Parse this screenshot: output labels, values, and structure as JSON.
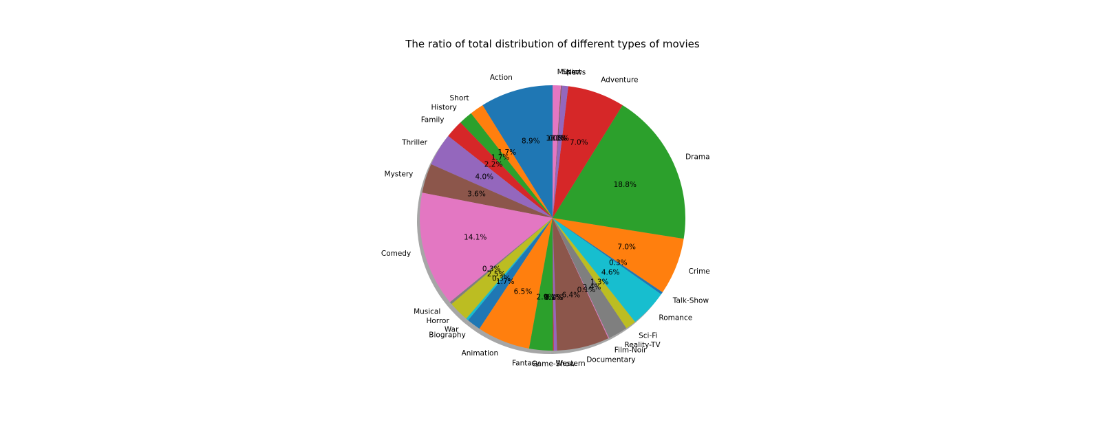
{
  "chart_data": {
    "type": "pie",
    "title": "The ratio of total distribution of different types of movies",
    "start_angle_deg": 90,
    "direction": "counterclockwise",
    "shadow": true,
    "slices": [
      {
        "label": "Action",
        "value": 8.9,
        "pct_label": "8.9%",
        "color": "#1f77b4"
      },
      {
        "label": "Short",
        "value": 1.7,
        "pct_label": "1.7%",
        "color": "#ff7f0e"
      },
      {
        "label": "History",
        "value": 1.7,
        "pct_label": "1.7%",
        "color": "#2ca02c"
      },
      {
        "label": "Family",
        "value": 2.2,
        "pct_label": "2.2%",
        "color": "#d62728"
      },
      {
        "label": "Thriller",
        "value": 4.0,
        "pct_label": "4.0%",
        "color": "#9467bd"
      },
      {
        "label": "Mystery",
        "value": 3.6,
        "pct_label": "3.6%",
        "color": "#8c564b"
      },
      {
        "label": "Comedy",
        "value": 14.1,
        "pct_label": "14.1%",
        "color": "#e377c2"
      },
      {
        "label": "Musical",
        "value": 0.3,
        "pct_label": "0.3%",
        "color": "#7f7f7f"
      },
      {
        "label": "Horror",
        "value": 2.5,
        "pct_label": "2.5%",
        "color": "#bcbd22"
      },
      {
        "label": "War",
        "value": 0.3,
        "pct_label": "0.3%",
        "color": "#17becf"
      },
      {
        "label": "Biography",
        "value": 1.7,
        "pct_label": "1.7%",
        "color": "#1f77b4"
      },
      {
        "label": "Animation",
        "value": 6.5,
        "pct_label": "6.5%",
        "color": "#ff7f0e"
      },
      {
        "label": "Fantasy",
        "value": 2.9,
        "pct_label": "2.9%",
        "color": "#2ca02c"
      },
      {
        "label": "Game-Show",
        "value": 0.1,
        "pct_label": "0.1%",
        "color": "#d62728"
      },
      {
        "label": "Western",
        "value": 0.4,
        "pct_label": "0.4%",
        "color": "#9467bd"
      },
      {
        "label": "Documentary",
        "value": 6.4,
        "pct_label": "6.4%",
        "color": "#8c564b"
      },
      {
        "label": "Film-Noir",
        "value": 0.1,
        "pct_label": "0.1%",
        "color": "#e377c2"
      },
      {
        "label": "Reality-TV",
        "value": 2.4,
        "pct_label": "2.4%",
        "color": "#7f7f7f"
      },
      {
        "label": "Sci-Fi",
        "value": 1.3,
        "pct_label": "1.3%",
        "color": "#bcbd22"
      },
      {
        "label": "Romance",
        "value": 4.6,
        "pct_label": "4.6%",
        "color": "#17becf"
      },
      {
        "label": "Talk-Show",
        "value": 0.3,
        "pct_label": "0.3%",
        "color": "#1f77b4"
      },
      {
        "label": "Crime",
        "value": 7.0,
        "pct_label": "7.0%",
        "color": "#ff7f0e"
      },
      {
        "label": "Drama",
        "value": 18.8,
        "pct_label": "18.8%",
        "color": "#2ca02c"
      },
      {
        "label": "Adventure",
        "value": 7.0,
        "pct_label": "7.0%",
        "color": "#d62728"
      },
      {
        "label": "News",
        "value": 0.8,
        "pct_label": "0.8%",
        "color": "#9467bd"
      },
      {
        "label": "Sport",
        "value": 0.1,
        "pct_label": "0.1%",
        "color": "#8c564b"
      },
      {
        "label": "Music",
        "value": 1.0,
        "pct_label": "1.0%",
        "color": "#e377c2"
      }
    ]
  }
}
